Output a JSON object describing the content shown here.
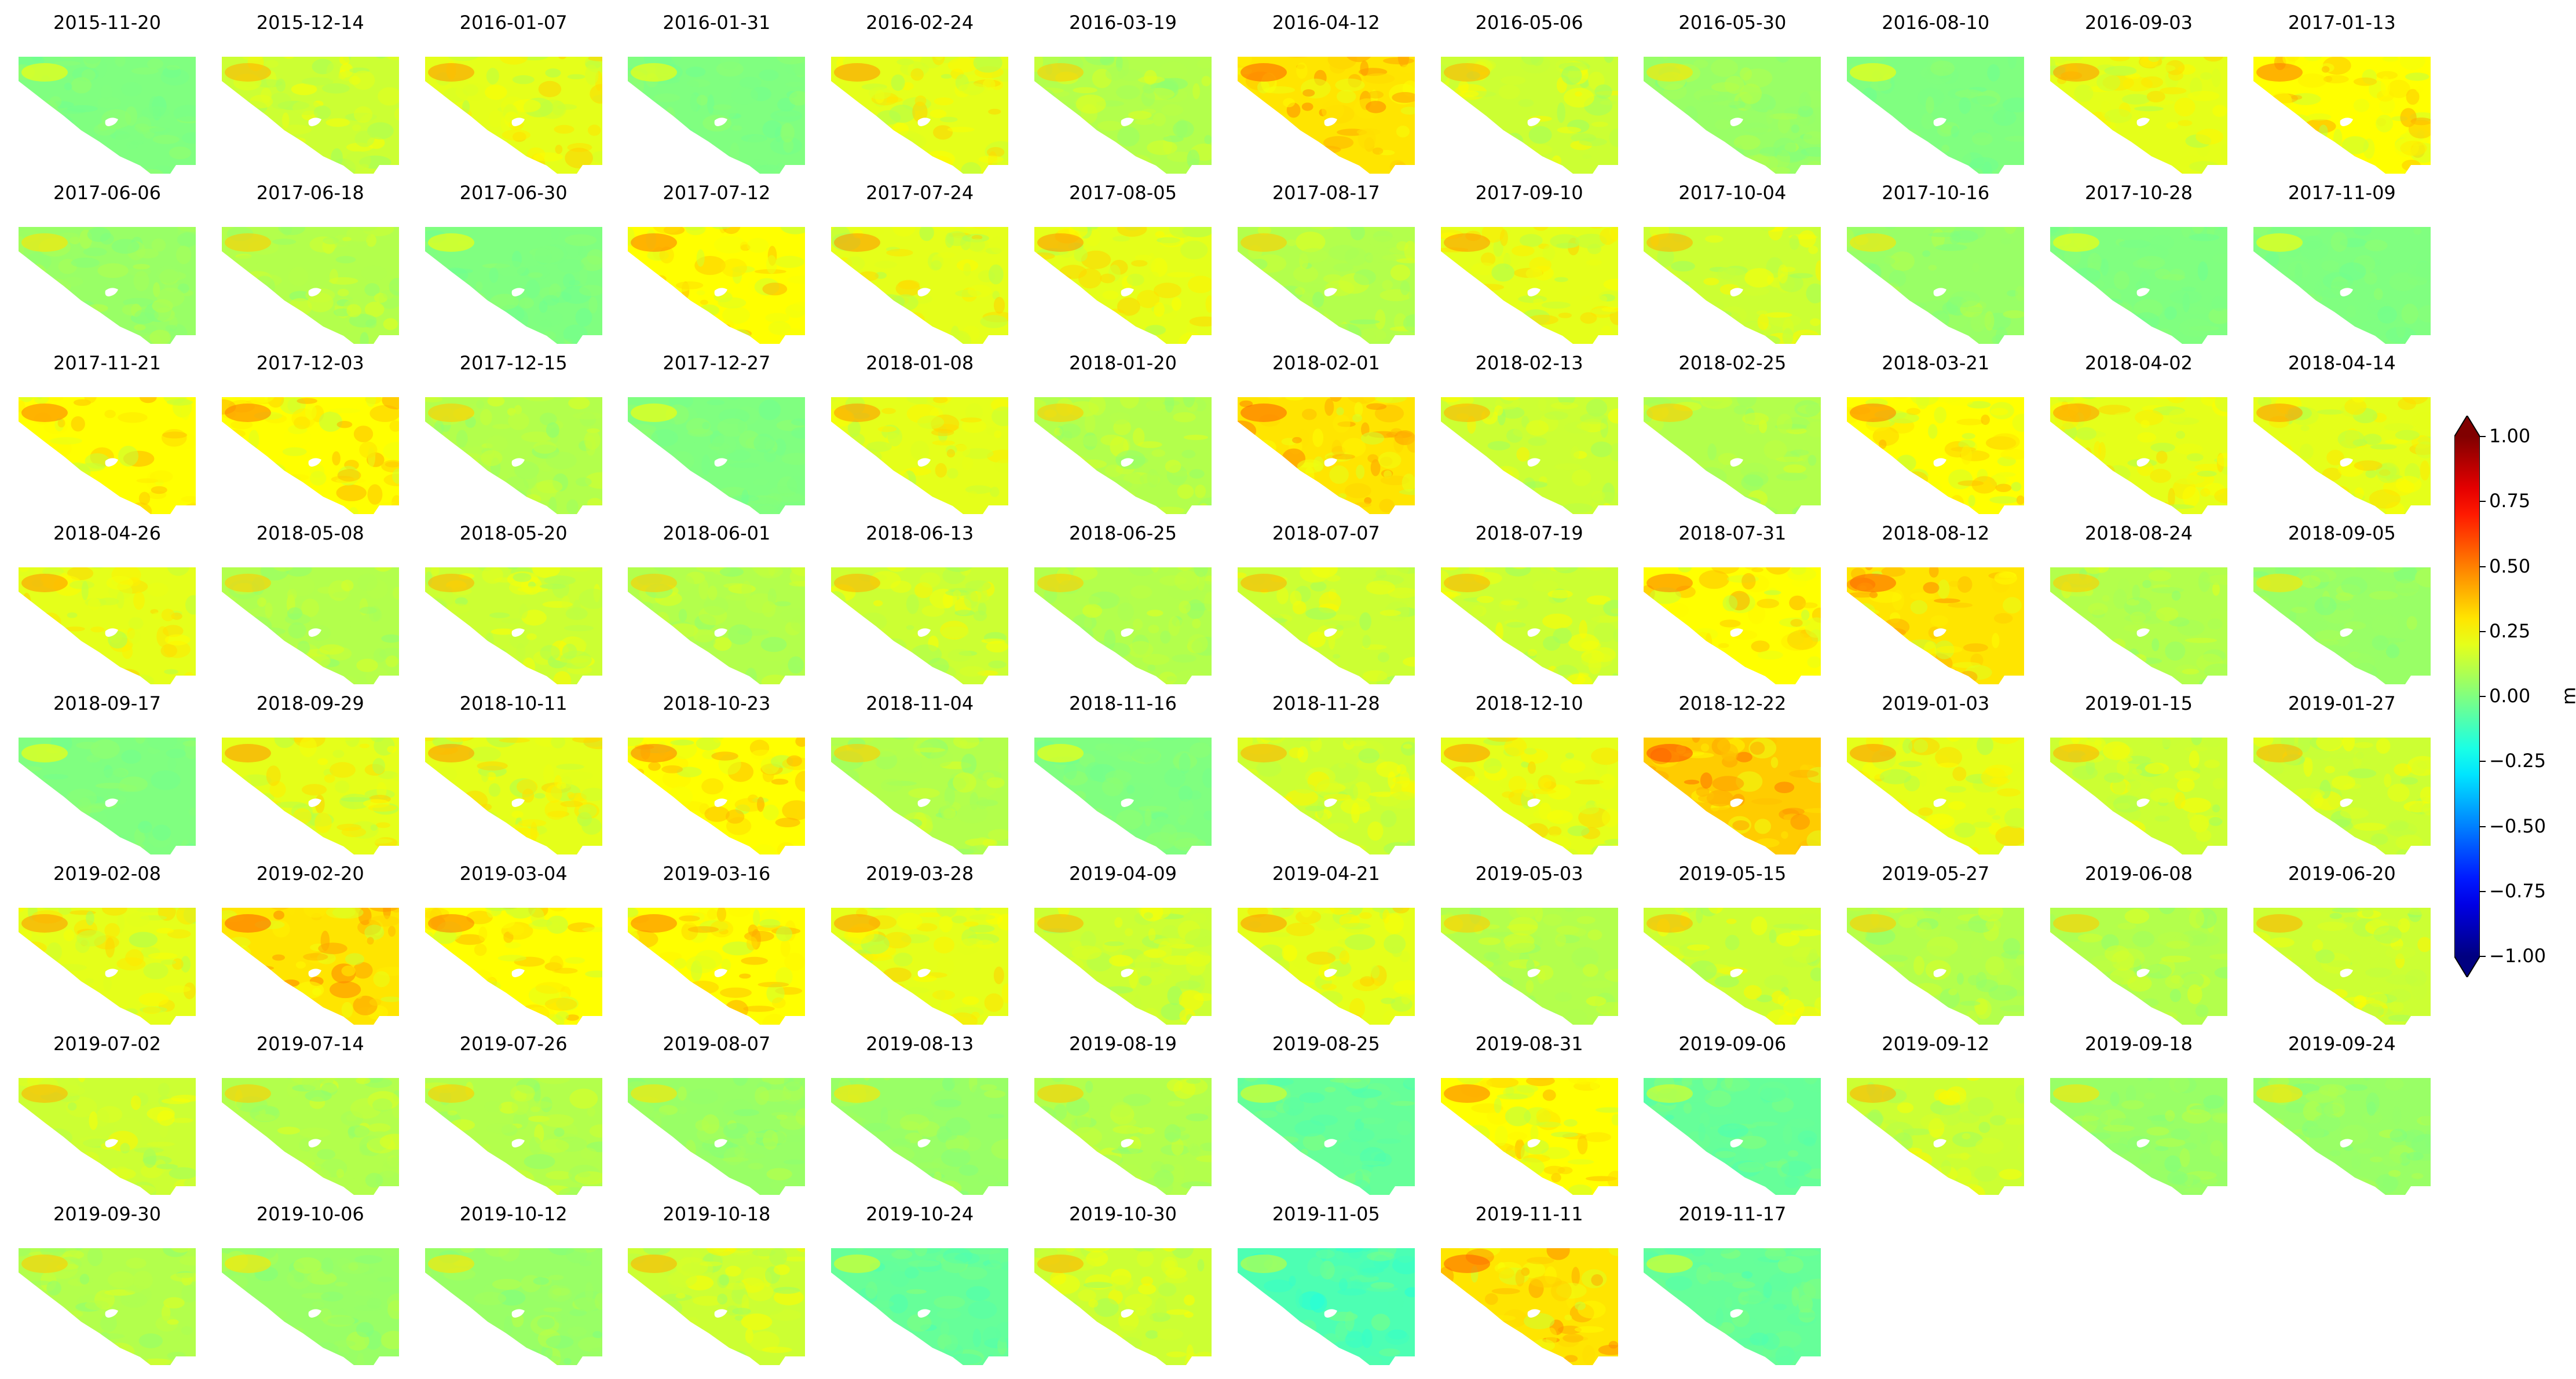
{
  "chart_data": {
    "type": "heatmap",
    "layout": "small-multiples grid of displacement maps, 12 columns x 8 rows",
    "colormap": "jet",
    "vmin": -1.0,
    "vmax": 1.0,
    "colorbar": {
      "label": "m",
      "ticks": [
        1.0,
        0.75,
        0.5,
        0.25,
        0.0,
        -0.25,
        -0.5,
        -0.75,
        -1.0
      ],
      "tick_labels": [
        "1.00",
        "0.75",
        "0.50",
        "0.25",
        "0.00",
        "−0.25",
        "−0.50",
        "−0.75",
        "−1.00"
      ],
      "extend": "both"
    },
    "panels": [
      {
        "date": "2015-11-20",
        "mean": 0.0
      },
      {
        "date": "2015-12-14",
        "mean": 0.15
      },
      {
        "date": "2016-01-07",
        "mean": 0.2
      },
      {
        "date": "2016-01-31",
        "mean": 0.0
      },
      {
        "date": "2016-02-24",
        "mean": 0.2
      },
      {
        "date": "2016-03-19",
        "mean": 0.1
      },
      {
        "date": "2016-04-12",
        "mean": 0.3
      },
      {
        "date": "2016-05-06",
        "mean": 0.15
      },
      {
        "date": "2016-05-30",
        "mean": 0.05
      },
      {
        "date": "2016-08-10",
        "mean": 0.0
      },
      {
        "date": "2016-09-03",
        "mean": 0.2
      },
      {
        "date": "2017-01-13",
        "mean": 0.25
      },
      {
        "date": "2017-06-06",
        "mean": 0.05
      },
      {
        "date": "2017-06-18",
        "mean": 0.1
      },
      {
        "date": "2017-06-30",
        "mean": 0.0
      },
      {
        "date": "2017-07-12",
        "mean": 0.25
      },
      {
        "date": "2017-07-24",
        "mean": 0.2
      },
      {
        "date": "2017-08-05",
        "mean": 0.2
      },
      {
        "date": "2017-08-17",
        "mean": 0.1
      },
      {
        "date": "2017-09-10",
        "mean": 0.2
      },
      {
        "date": "2017-10-04",
        "mean": 0.15
      },
      {
        "date": "2017-10-16",
        "mean": 0.05
      },
      {
        "date": "2017-10-28",
        "mean": 0.0
      },
      {
        "date": "2017-11-09",
        "mean": 0.0
      },
      {
        "date": "2017-11-21",
        "mean": 0.25
      },
      {
        "date": "2017-12-03",
        "mean": 0.25
      },
      {
        "date": "2017-12-15",
        "mean": 0.1
      },
      {
        "date": "2017-12-27",
        "mean": 0.0
      },
      {
        "date": "2018-01-08",
        "mean": 0.2
      },
      {
        "date": "2018-01-20",
        "mean": 0.1
      },
      {
        "date": "2018-02-01",
        "mean": 0.3
      },
      {
        "date": "2018-02-13",
        "mean": 0.15
      },
      {
        "date": "2018-02-25",
        "mean": 0.1
      },
      {
        "date": "2018-03-21",
        "mean": 0.25
      },
      {
        "date": "2018-04-02",
        "mean": 0.2
      },
      {
        "date": "2018-04-14",
        "mean": 0.2
      },
      {
        "date": "2018-04-26",
        "mean": 0.2
      },
      {
        "date": "2018-05-08",
        "mean": 0.1
      },
      {
        "date": "2018-05-20",
        "mean": 0.15
      },
      {
        "date": "2018-06-01",
        "mean": 0.1
      },
      {
        "date": "2018-06-13",
        "mean": 0.15
      },
      {
        "date": "2018-06-25",
        "mean": 0.1
      },
      {
        "date": "2018-07-07",
        "mean": 0.15
      },
      {
        "date": "2018-07-19",
        "mean": 0.15
      },
      {
        "date": "2018-07-31",
        "mean": 0.25
      },
      {
        "date": "2018-08-12",
        "mean": 0.3
      },
      {
        "date": "2018-08-24",
        "mean": 0.1
      },
      {
        "date": "2018-09-05",
        "mean": 0.05
      },
      {
        "date": "2018-09-17",
        "mean": 0.0
      },
      {
        "date": "2018-09-29",
        "mean": 0.2
      },
      {
        "date": "2018-10-11",
        "mean": 0.2
      },
      {
        "date": "2018-10-23",
        "mean": 0.25
      },
      {
        "date": "2018-11-04",
        "mean": 0.1
      },
      {
        "date": "2018-11-16",
        "mean": 0.0
      },
      {
        "date": "2018-11-28",
        "mean": 0.15
      },
      {
        "date": "2018-12-10",
        "mean": 0.2
      },
      {
        "date": "2018-12-22",
        "mean": 0.35
      },
      {
        "date": "2019-01-03",
        "mean": 0.2
      },
      {
        "date": "2019-01-15",
        "mean": 0.15
      },
      {
        "date": "2019-01-27",
        "mean": 0.15
      },
      {
        "date": "2019-02-08",
        "mean": 0.2
      },
      {
        "date": "2019-02-20",
        "mean": 0.3
      },
      {
        "date": "2019-03-04",
        "mean": 0.25
      },
      {
        "date": "2019-03-16",
        "mean": 0.25
      },
      {
        "date": "2019-03-28",
        "mean": 0.2
      },
      {
        "date": "2019-04-09",
        "mean": 0.15
      },
      {
        "date": "2019-04-21",
        "mean": 0.2
      },
      {
        "date": "2019-05-03",
        "mean": 0.1
      },
      {
        "date": "2019-05-15",
        "mean": 0.15
      },
      {
        "date": "2019-05-27",
        "mean": 0.1
      },
      {
        "date": "2019-06-08",
        "mean": 0.1
      },
      {
        "date": "2019-06-20",
        "mean": 0.15
      },
      {
        "date": "2019-07-02",
        "mean": 0.15
      },
      {
        "date": "2019-07-14",
        "mean": 0.1
      },
      {
        "date": "2019-07-26",
        "mean": 0.1
      },
      {
        "date": "2019-08-07",
        "mean": 0.05
      },
      {
        "date": "2019-08-13",
        "mean": 0.05
      },
      {
        "date": "2019-08-19",
        "mean": 0.1
      },
      {
        "date": "2019-08-25",
        "mean": -0.05
      },
      {
        "date": "2019-08-31",
        "mean": 0.25
      },
      {
        "date": "2019-09-06",
        "mean": -0.05
      },
      {
        "date": "2019-09-12",
        "mean": 0.15
      },
      {
        "date": "2019-09-18",
        "mean": 0.05
      },
      {
        "date": "2019-09-24",
        "mean": 0.05
      },
      {
        "date": "2019-09-30",
        "mean": 0.1
      },
      {
        "date": "2019-10-06",
        "mean": 0.05
      },
      {
        "date": "2019-10-12",
        "mean": 0.05
      },
      {
        "date": "2019-10-18",
        "mean": 0.15
      },
      {
        "date": "2019-10-24",
        "mean": -0.05
      },
      {
        "date": "2019-10-30",
        "mean": 0.15
      },
      {
        "date": "2019-11-05",
        "mean": -0.1
      },
      {
        "date": "2019-11-11",
        "mean": 0.3
      },
      {
        "date": "2019-11-17",
        "mean": -0.05
      }
    ]
  }
}
